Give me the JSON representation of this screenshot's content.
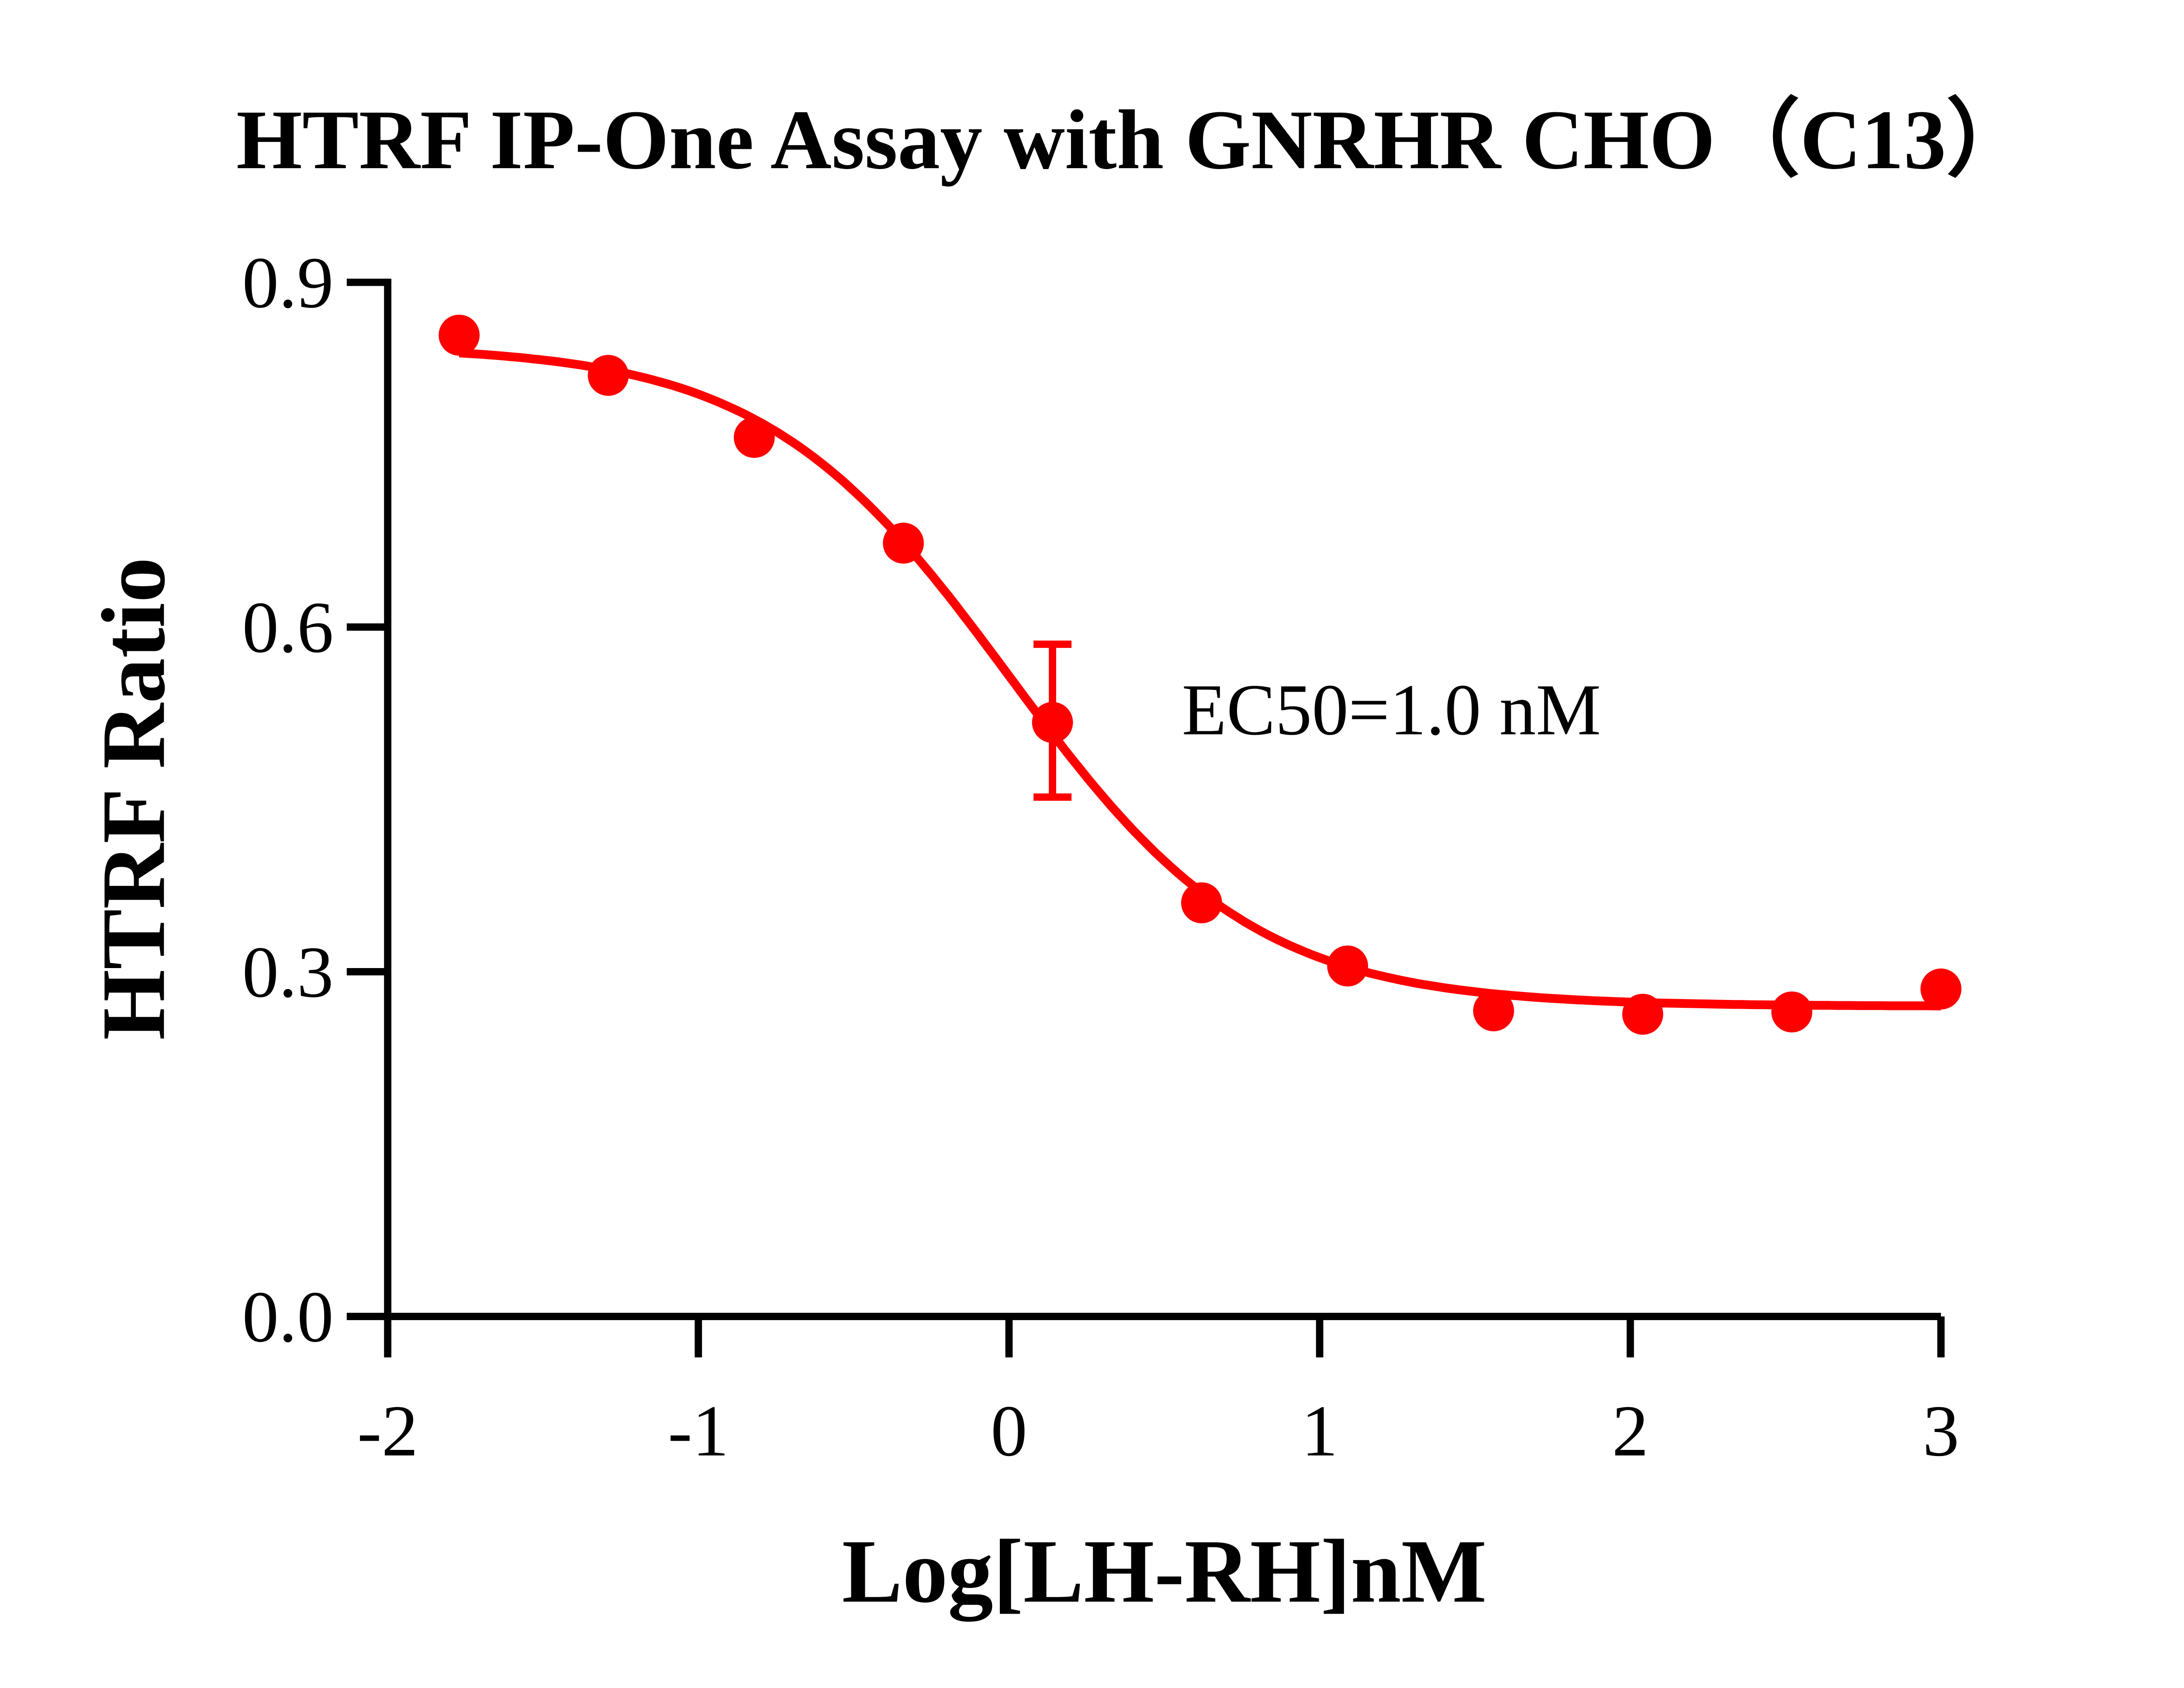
{
  "chart_data": {
    "type": "scatter",
    "title": "HTRF IP-One Assay with GNRHR CHO（C13）",
    "xlabel": "Log[LH-RH]nM",
    "ylabel": "HTRF Ratio",
    "xlim": [
      -2,
      3
    ],
    "ylim": [
      0,
      0.9
    ],
    "x_ticks": [
      -2,
      -1,
      0,
      1,
      2,
      3
    ],
    "x_tick_labels": [
      "-2",
      "-1",
      "0",
      "1",
      "2",
      "3"
    ],
    "y_ticks": [
      0,
      0.3,
      0.6,
      0.9
    ],
    "y_tick_labels": [
      "0.0",
      "0.3",
      "0.6",
      "0.9"
    ],
    "grid": false,
    "color": "#ff0000",
    "points": [
      {
        "x": -1.77,
        "y": 0.854
      },
      {
        "x": -1.29,
        "y": 0.819
      },
      {
        "x": -0.82,
        "y": 0.765
      },
      {
        "x": -0.34,
        "y": 0.673
      },
      {
        "x": 0.14,
        "y": 0.517,
        "err_low": 0.452,
        "err_high": 0.585
      },
      {
        "x": 0.62,
        "y": 0.36
      },
      {
        "x": 1.09,
        "y": 0.305
      },
      {
        "x": 1.56,
        "y": 0.266
      },
      {
        "x": 2.04,
        "y": 0.263
      },
      {
        "x": 2.52,
        "y": 0.265
      },
      {
        "x": 3.0,
        "y": 0.285
      }
    ],
    "fit": {
      "model": "four-parameter logistic",
      "top": 0.845,
      "bottom": 0.27,
      "log_ec50": 0.0,
      "hill_slope": -1.1
    },
    "annotation": "EC50=1.0 nM"
  }
}
